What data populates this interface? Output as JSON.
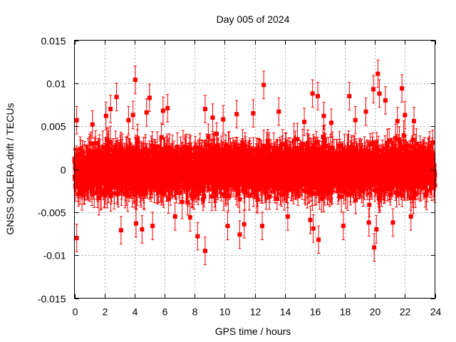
{
  "chart_data": {
    "type": "scatter",
    "title": "Day 005 of 2024",
    "xlabel": "GPS time / hours",
    "ylabel": "GNSS SOLERA-drift / TECUs",
    "xlim": [
      0,
      24
    ],
    "ylim": [
      -0.015,
      0.015
    ],
    "xticks": [
      "0",
      "2",
      "4",
      "6",
      "8",
      "10",
      "12",
      "14",
      "16",
      "18",
      "20",
      "22",
      "24"
    ],
    "yticks": [
      "0.015",
      "0.01",
      "0.005",
      "0",
      "-0.005",
      "-0.01",
      "-0.015"
    ],
    "grid": true,
    "marker": "filled-square",
    "error_bars": true,
    "colors": {
      "series": "#ff0000",
      "grid": "#a0a0a0",
      "axes": "#000000"
    },
    "outliers": [
      {
        "x": 0.15,
        "y": -0.008
      },
      {
        "x": 0.15,
        "y": 0.0057
      },
      {
        "x": 1.2,
        "y": 0.0052
      },
      {
        "x": 2.1,
        "y": 0.0062
      },
      {
        "x": 2.4,
        "y": 0.007
      },
      {
        "x": 2.8,
        "y": 0.0084
      },
      {
        "x": 3.1,
        "y": -0.0071
      },
      {
        "x": 3.6,
        "y": 0.0057
      },
      {
        "x": 3.9,
        "y": 0.0063
      },
      {
        "x": 4.05,
        "y": 0.0104
      },
      {
        "x": 4.1,
        "y": -0.0063
      },
      {
        "x": 4.5,
        "y": -0.007
      },
      {
        "x": 4.8,
        "y": 0.0066
      },
      {
        "x": 5.0,
        "y": 0.0083
      },
      {
        "x": 5.2,
        "y": -0.0066
      },
      {
        "x": 5.9,
        "y": 0.0068
      },
      {
        "x": 6.2,
        "y": 0.0071
      },
      {
        "x": 6.7,
        "y": -0.0055
      },
      {
        "x": 7.7,
        "y": -0.0056
      },
      {
        "x": 8.2,
        "y": -0.0078
      },
      {
        "x": 8.7,
        "y": -0.0095
      },
      {
        "x": 8.7,
        "y": 0.007
      },
      {
        "x": 9.2,
        "y": 0.006
      },
      {
        "x": 9.9,
        "y": 0.0058
      },
      {
        "x": 10.2,
        "y": -0.0066
      },
      {
        "x": 10.8,
        "y": 0.0064
      },
      {
        "x": 11.0,
        "y": -0.0076
      },
      {
        "x": 11.3,
        "y": -0.0064
      },
      {
        "x": 11.9,
        "y": 0.0065
      },
      {
        "x": 12.6,
        "y": 0.0098
      },
      {
        "x": 12.5,
        "y": -0.0066
      },
      {
        "x": 13.6,
        "y": 0.0067
      },
      {
        "x": 14.2,
        "y": -0.0055
      },
      {
        "x": 15.3,
        "y": 0.0055
      },
      {
        "x": 15.7,
        "y": -0.0059
      },
      {
        "x": 15.85,
        "y": 0.0088
      },
      {
        "x": 15.9,
        "y": -0.0069
      },
      {
        "x": 16.2,
        "y": 0.0085
      },
      {
        "x": 16.25,
        "y": -0.0082
      },
      {
        "x": 16.6,
        "y": 0.0062
      },
      {
        "x": 17.1,
        "y": 0.0054
      },
      {
        "x": 17.9,
        "y": -0.0066
      },
      {
        "x": 18.3,
        "y": 0.0085
      },
      {
        "x": 18.7,
        "y": 0.0057
      },
      {
        "x": 19.4,
        "y": 0.0067
      },
      {
        "x": 19.6,
        "y": -0.0062
      },
      {
        "x": 19.9,
        "y": 0.0093
      },
      {
        "x": 19.95,
        "y": -0.0091
      },
      {
        "x": 20.1,
        "y": -0.007
      },
      {
        "x": 20.2,
        "y": 0.0111
      },
      {
        "x": 20.3,
        "y": 0.0088
      },
      {
        "x": 20.7,
        "y": 0.008
      },
      {
        "x": 21.2,
        "y": -0.0062
      },
      {
        "x": 21.5,
        "y": 0.0056
      },
      {
        "x": 21.8,
        "y": 0.0094
      },
      {
        "x": 22.0,
        "y": 0.0063
      },
      {
        "x": 22.4,
        "y": -0.0055
      },
      {
        "x": 22.6,
        "y": 0.0056
      }
    ]
  }
}
